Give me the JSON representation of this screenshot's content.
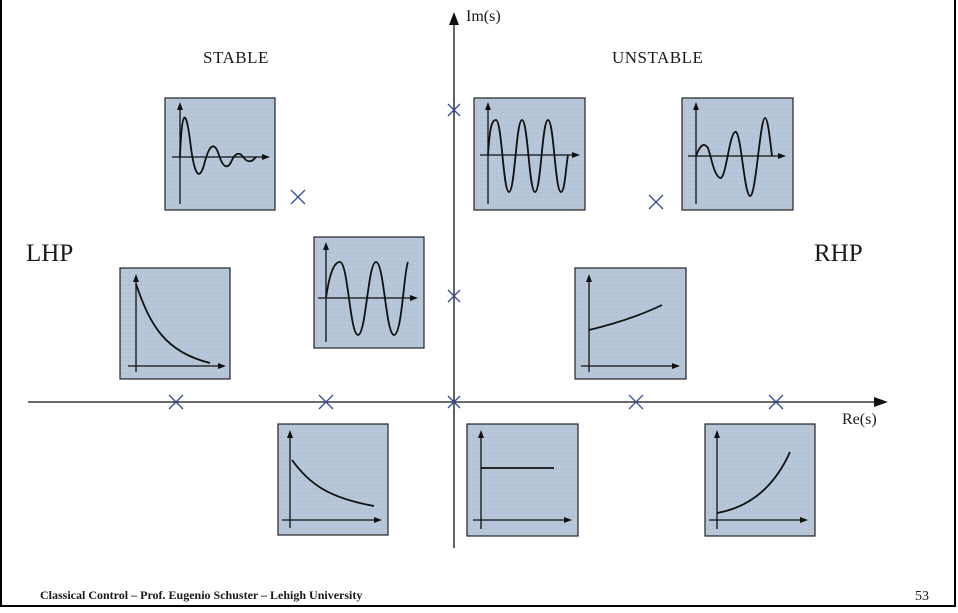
{
  "labels": {
    "stable": "STABLE",
    "unstable": "UNSTABLE",
    "lhp": "LHP",
    "rhp": "RHP",
    "im_axis": "Im(s)",
    "re_axis": "Re(s)"
  },
  "footer": {
    "text": "Classical Control – Prof. Eugenio Schuster – Lehigh University",
    "page_number": "53"
  },
  "colors": {
    "panel_fill": "#b6c6d8",
    "panel_border": "#222222",
    "pole_marker": "#3a4f9a",
    "axis": "#111111",
    "curve": "#111111"
  },
  "poles": [
    {
      "re": 0,
      "im": "upper"
    },
    {
      "re": 0,
      "im": "mid"
    },
    {
      "re": 0,
      "im": 0
    },
    {
      "re": "left-far",
      "im": 0
    },
    {
      "re": "left-near",
      "im": 0
    },
    {
      "re": "right-near",
      "im": 0
    },
    {
      "re": "right-far",
      "im": 0
    },
    {
      "re": "left",
      "im": "upper-mid"
    },
    {
      "re": "right",
      "im": "upper-mid"
    }
  ],
  "responses": [
    {
      "region": "stable",
      "curve": "damped-oscillation"
    },
    {
      "region": "stable",
      "curve": "fast-decay"
    },
    {
      "region": "marginal",
      "curve": "sustained-oscillation-low-freq"
    },
    {
      "region": "stable",
      "curve": "slow-decay"
    },
    {
      "region": "marginal",
      "curve": "sustained-oscillation-high-freq"
    },
    {
      "region": "unstable",
      "curve": "growing-oscillation"
    },
    {
      "region": "unstable",
      "curve": "slow-growth"
    },
    {
      "region": "marginal",
      "curve": "constant"
    },
    {
      "region": "unstable",
      "curve": "fast-growth"
    }
  ]
}
